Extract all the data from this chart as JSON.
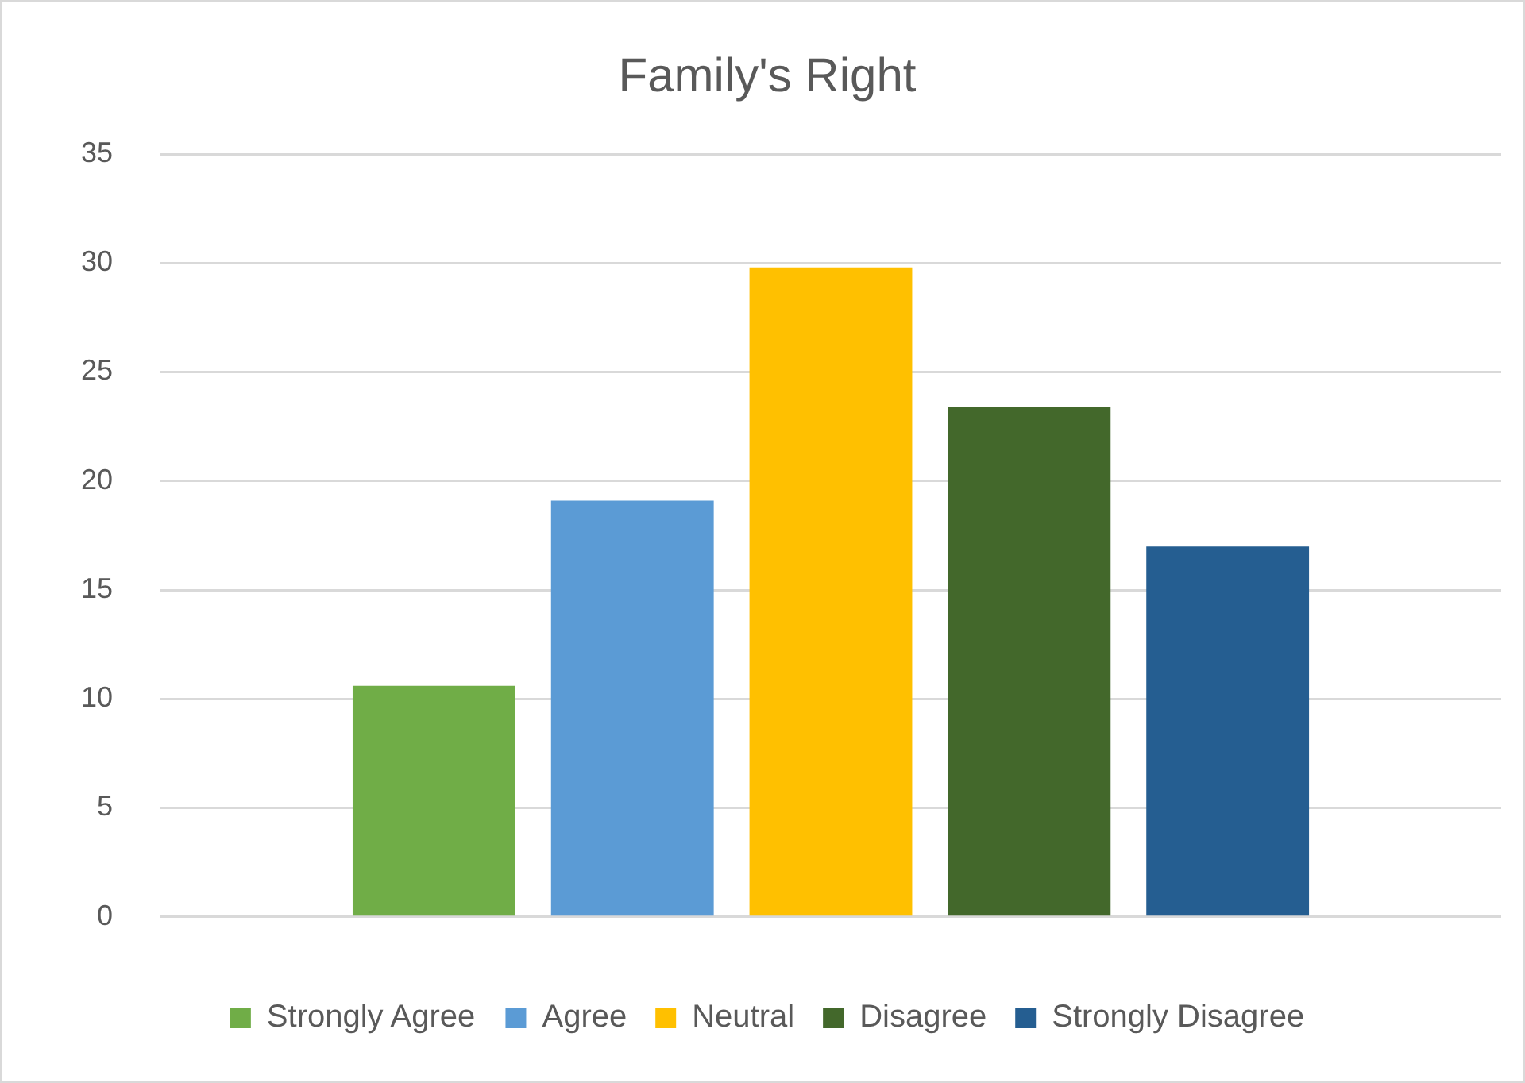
{
  "chart_data": {
    "type": "bar",
    "title": "Family's Right",
    "categories": [
      null
    ],
    "series": [
      {
        "name": "Strongly Agree",
        "color": "#70ad47",
        "values": [
          10.6
        ]
      },
      {
        "name": "Agree",
        "color": "#5b9bd5",
        "values": [
          19.1
        ]
      },
      {
        "name": "Neutral",
        "color": "#ffc000",
        "values": [
          29.8
        ]
      },
      {
        "name": "Disagree",
        "color": "#43682b",
        "values": [
          23.4
        ]
      },
      {
        "name": "Strongly Disagree",
        "color": "#255e91",
        "values": [
          17
        ]
      }
    ],
    "ylim": [
      0,
      35
    ],
    "yticks": [
      0,
      5,
      10,
      15,
      20,
      25,
      30,
      35
    ],
    "grid": "y",
    "legend": "bottom"
  }
}
